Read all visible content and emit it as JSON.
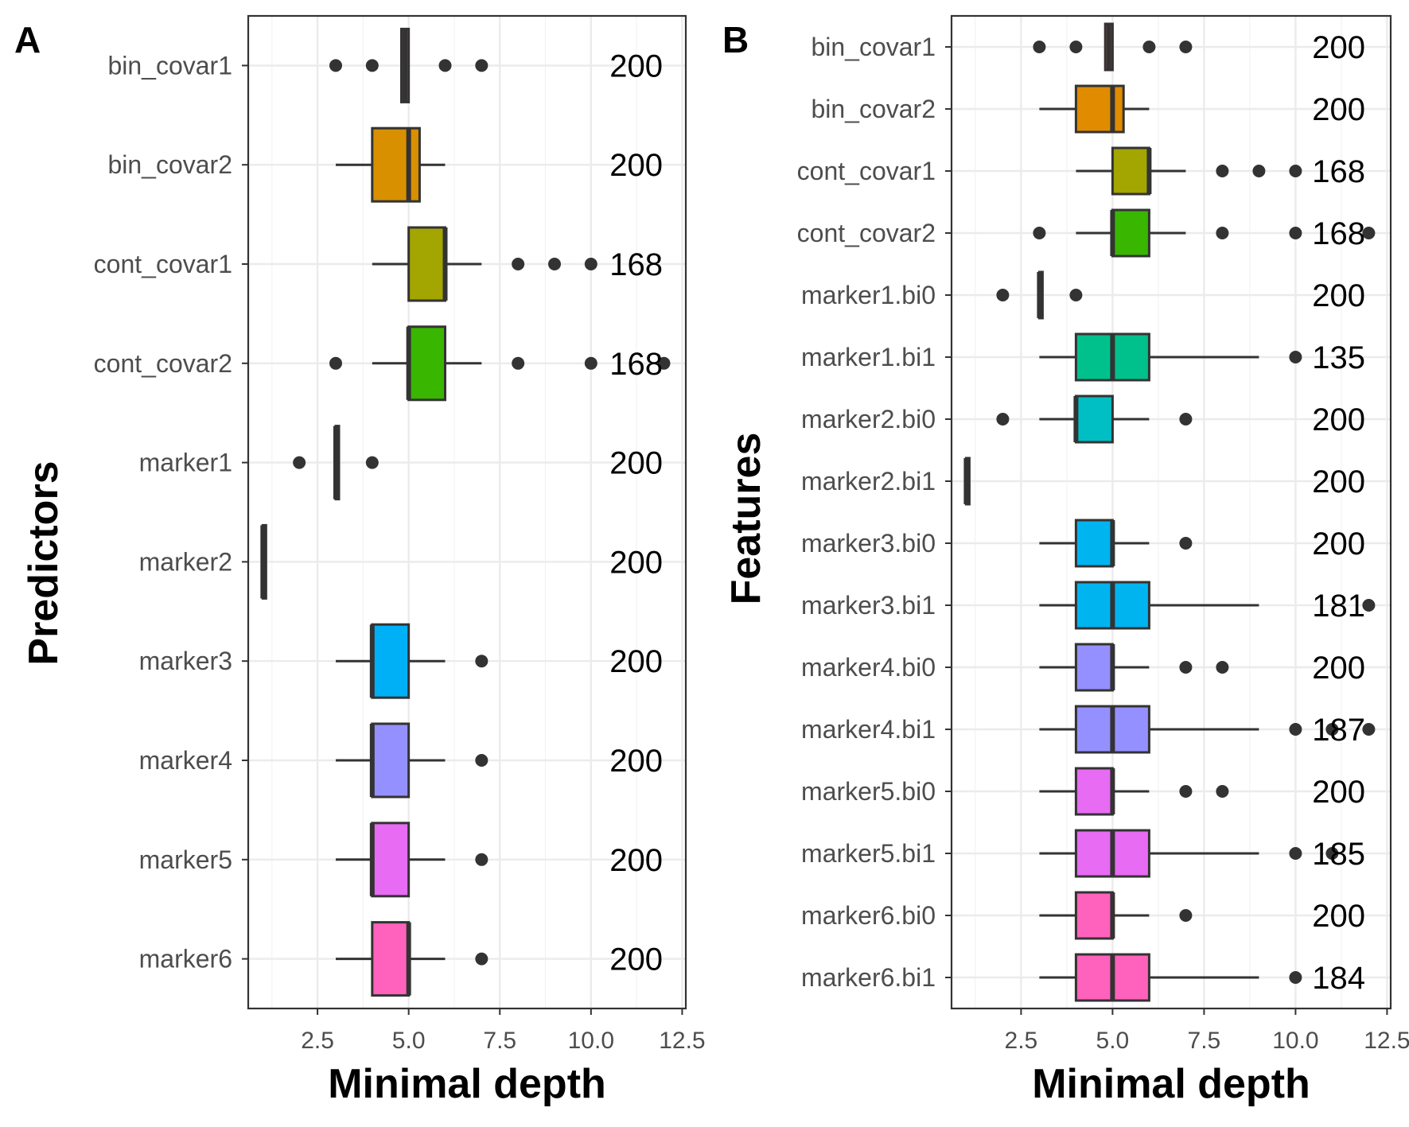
{
  "chart_data": [
    {
      "panel": "A",
      "type": "box",
      "xlabel": "Minimal depth",
      "ylabel": "Predictors",
      "xlim": [
        0.6,
        12.6
      ],
      "xticks": [
        2.5,
        5.0,
        7.5,
        10.0,
        12.5
      ],
      "tick_labels": [
        "2.5",
        "5.0",
        "7.5",
        "10.0",
        "12.5"
      ],
      "grid": true,
      "categories": [
        {
          "name": "bin_covar1",
          "color": "#F8766D",
          "q1": 4.8,
          "median": 4.9,
          "q3": 5.0,
          "whisker_low": 4.8,
          "whisker_high": 5.0,
          "outliers": [
            3,
            4,
            6,
            7
          ],
          "count": "200"
        },
        {
          "name": "bin_covar2",
          "color": "#D89000",
          "q1": 4.0,
          "median": 5.0,
          "q3": 5.3,
          "whisker_low": 3,
          "whisker_high": 6,
          "outliers": [],
          "count": "200"
        },
        {
          "name": "cont_covar1",
          "color": "#A3A500",
          "q1": 5.0,
          "median": 6.0,
          "q3": 6.0,
          "whisker_low": 4,
          "whisker_high": 7,
          "outliers": [
            8,
            9,
            10
          ],
          "count": "168"
        },
        {
          "name": "cont_covar2",
          "color": "#39B600",
          "q1": 5.0,
          "median": 5.0,
          "q3": 6.0,
          "whisker_low": 4,
          "whisker_high": 7,
          "outliers": [
            3,
            8,
            10,
            12
          ],
          "count": "168"
        },
        {
          "name": "marker1",
          "color": "#00BF7D",
          "q1": 3.0,
          "median": 3.0,
          "q3": 3.0,
          "whisker_low": 3,
          "whisker_high": 3,
          "outliers": [
            2,
            4
          ],
          "count": "200"
        },
        {
          "name": "marker2",
          "color": "#00BFC4",
          "q1": 1.0,
          "median": 1.0,
          "q3": 1.0,
          "whisker_low": 1,
          "whisker_high": 1,
          "outliers": [],
          "count": "200"
        },
        {
          "name": "marker3",
          "color": "#00B0F6",
          "q1": 4.0,
          "median": 4.0,
          "q3": 5.0,
          "whisker_low": 3,
          "whisker_high": 6,
          "outliers": [
            7
          ],
          "count": "200"
        },
        {
          "name": "marker4",
          "color": "#9590FF",
          "q1": 4.0,
          "median": 4.0,
          "q3": 5.0,
          "whisker_low": 3,
          "whisker_high": 6,
          "outliers": [
            7
          ],
          "count": "200"
        },
        {
          "name": "marker5",
          "color": "#E76BF3",
          "q1": 4.0,
          "median": 4.0,
          "q3": 5.0,
          "whisker_low": 3,
          "whisker_high": 6,
          "outliers": [
            7
          ],
          "count": "200"
        },
        {
          "name": "marker6",
          "color": "#FF62BC",
          "q1": 4.0,
          "median": 5.0,
          "q3": 5.0,
          "whisker_low": 3,
          "whisker_high": 6,
          "outliers": [
            7
          ],
          "count": "200"
        }
      ]
    },
    {
      "panel": "B",
      "type": "box",
      "xlabel": "Minimal depth",
      "ylabel": "Features",
      "xlim": [
        0.6,
        12.6
      ],
      "xticks": [
        2.5,
        5.0,
        7.5,
        10.0,
        12.5
      ],
      "tick_labels": [
        "2.5",
        "5.0",
        "7.5",
        "10.0",
        "12.5"
      ],
      "grid": true,
      "categories": [
        {
          "name": "bin_covar1",
          "color": "#F8766D",
          "q1": 4.8,
          "median": 4.9,
          "q3": 5.0,
          "whisker_low": 4.8,
          "whisker_high": 5.0,
          "outliers": [
            3,
            4,
            6,
            7
          ],
          "count": "200"
        },
        {
          "name": "bin_covar2",
          "color": "#E08B00",
          "q1": 4.0,
          "median": 5.0,
          "q3": 5.3,
          "whisker_low": 3,
          "whisker_high": 6,
          "outliers": [],
          "count": "200"
        },
        {
          "name": "cont_covar1",
          "color": "#A3A500",
          "q1": 5.0,
          "median": 6.0,
          "q3": 6.0,
          "whisker_low": 4,
          "whisker_high": 7,
          "outliers": [
            8,
            9,
            10
          ],
          "count": "168"
        },
        {
          "name": "cont_covar2",
          "color": "#39B600",
          "q1": 5.0,
          "median": 5.0,
          "q3": 6.0,
          "whisker_low": 4,
          "whisker_high": 7,
          "outliers": [
            3,
            8,
            10,
            12
          ],
          "count": "168"
        },
        {
          "name": "marker1.bi0",
          "color": "#00BA38",
          "q1": 3.0,
          "median": 3.0,
          "q3": 3.0,
          "whisker_low": 3,
          "whisker_high": 3,
          "outliers": [
            2,
            4
          ],
          "count": "200"
        },
        {
          "name": "marker1.bi1",
          "color": "#00C08B",
          "q1": 4.0,
          "median": 5.0,
          "q3": 6.0,
          "whisker_low": 3,
          "whisker_high": 9,
          "outliers": [
            10
          ],
          "count": "135"
        },
        {
          "name": "marker2.bi0",
          "color": "#00BFC4",
          "q1": 4.0,
          "median": 4.0,
          "q3": 5.0,
          "whisker_low": 3,
          "whisker_high": 6,
          "outliers": [
            2,
            7
          ],
          "count": "200"
        },
        {
          "name": "marker2.bi1",
          "color": "#00BFC4",
          "q1": 1.0,
          "median": 1.0,
          "q3": 1.0,
          "whisker_low": 1,
          "whisker_high": 1,
          "outliers": [],
          "count": "200"
        },
        {
          "name": "marker3.bi0",
          "color": "#00B4F0",
          "q1": 4.0,
          "median": 5.0,
          "q3": 5.0,
          "whisker_low": 3,
          "whisker_high": 6,
          "outliers": [
            7
          ],
          "count": "200"
        },
        {
          "name": "marker3.bi1",
          "color": "#00B4F0",
          "q1": 4.0,
          "median": 5.0,
          "q3": 6.0,
          "whisker_low": 3,
          "whisker_high": 9,
          "outliers": [
            12
          ],
          "count": "181"
        },
        {
          "name": "marker4.bi0",
          "color": "#9590FF",
          "q1": 4.0,
          "median": 5.0,
          "q3": 5.0,
          "whisker_low": 3,
          "whisker_high": 6,
          "outliers": [
            7,
            8
          ],
          "count": "200"
        },
        {
          "name": "marker4.bi1",
          "color": "#9590FF",
          "q1": 4.0,
          "median": 5.0,
          "q3": 6.0,
          "whisker_low": 3,
          "whisker_high": 9,
          "outliers": [
            10,
            11,
            12
          ],
          "count": "187"
        },
        {
          "name": "marker5.bi0",
          "color": "#E76BF3",
          "q1": 4.0,
          "median": 5.0,
          "q3": 5.0,
          "whisker_low": 3,
          "whisker_high": 6,
          "outliers": [
            7,
            8
          ],
          "count": "200"
        },
        {
          "name": "marker5.bi1",
          "color": "#E76BF3",
          "q1": 4.0,
          "median": 5.0,
          "q3": 6.0,
          "whisker_low": 3,
          "whisker_high": 9,
          "outliers": [
            10,
            11
          ],
          "count": "185"
        },
        {
          "name": "marker6.bi0",
          "color": "#FF62BC",
          "q1": 4.0,
          "median": 5.0,
          "q3": 5.0,
          "whisker_low": 3,
          "whisker_high": 6,
          "outliers": [
            7
          ],
          "count": "200"
        },
        {
          "name": "marker6.bi1",
          "color": "#FF62BC",
          "q1": 4.0,
          "median": 5.0,
          "q3": 6.0,
          "whisker_low": 3,
          "whisker_high": 9,
          "outliers": [
            10
          ],
          "count": "184"
        }
      ]
    }
  ]
}
